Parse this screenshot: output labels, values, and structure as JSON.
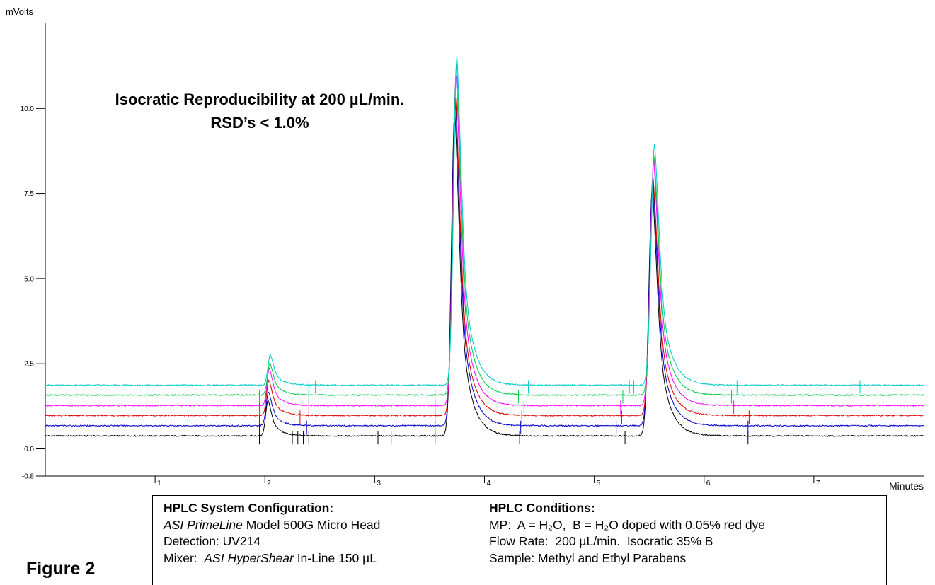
{
  "chart_data": {
    "type": "line",
    "title": "Isocratic Reproducibility at 200 µL/min.",
    "subtitle": "RSD’s < 1.0%",
    "xlabel": "Minutes",
    "ylabel": "mVolts",
    "xlim": [
      0,
      8
    ],
    "ylim": [
      -0.8,
      12.5
    ],
    "x_ticks": [
      1,
      2,
      3,
      4,
      5,
      6,
      7
    ],
    "y_ticks": [
      {
        "value": 10.0,
        "label": "10.0"
      },
      {
        "value": 7.5,
        "label": "7.5"
      },
      {
        "value": 5.0,
        "label": "5.0"
      },
      {
        "value": 2.5,
        "label": "2.5"
      },
      {
        "value": 0.0,
        "label": "0.0"
      },
      {
        "value": -0.8,
        "label": "-0.8"
      }
    ],
    "grid": false,
    "legend": "none",
    "peaks": [
      {
        "retention_min": 2.04
      },
      {
        "retention_min": 3.74
      },
      {
        "retention_min": 5.54
      }
    ],
    "series": [
      {
        "color": "#000000",
        "baseline": 0.38,
        "peak_heights": [
          1.05,
          9.6,
          7.3
        ],
        "markers": [
          1.95,
          2.25,
          2.3,
          2.35,
          2.4,
          3.03,
          3.15,
          3.55,
          4.32,
          5.28,
          6.4
        ]
      },
      {
        "color": "#0000cc",
        "baseline": 0.68,
        "peak_heights": [
          1.0,
          9.7,
          7.25
        ],
        "markers": [
          1.95,
          2.38,
          3.55,
          4.33,
          5.2,
          6.4
        ]
      },
      {
        "color": "#dd0000",
        "baseline": 0.98,
        "peak_heights": [
          1.05,
          9.35,
          6.95
        ],
        "markers": [
          1.95,
          2.32,
          3.55,
          4.34,
          5.25,
          6.41
        ]
      },
      {
        "color": "#ff00ff",
        "baseline": 1.27,
        "peak_heights": [
          1.1,
          9.75,
          7.25
        ],
        "markers": [
          1.95,
          2.4,
          3.55,
          4.36,
          5.24,
          6.27
        ]
      },
      {
        "color": "#00cc44",
        "baseline": 1.58,
        "peak_heights": [
          0.95,
          9.75,
          7.05
        ],
        "markers": [
          1.95,
          2.4,
          3.55,
          4.31,
          5.26,
          6.25
        ]
      },
      {
        "color": "#00cccc",
        "baseline": 1.87,
        "peak_heights": [
          0.9,
          9.7,
          7.1
        ],
        "markers": [
          2.4,
          2.46,
          4.36,
          4.4,
          5.32,
          5.36,
          6.3,
          7.34,
          7.42
        ]
      }
    ]
  },
  "info": {
    "config_heading": "HPLC System Configuration:",
    "config_line1_italic": "ASI PrimeLine",
    "config_line1_rest": " Model 500G Micro Head",
    "config_line2": "Detection: UV214",
    "config_line3_prefix": "Mixer:  ",
    "config_line3_italic": "ASI HyperShear",
    "config_line3_rest": " In-Line 150 µL",
    "conditions_heading": "HPLC Conditions:",
    "conditions_line1": "MP:  A = H₂O,  B = H₂O doped with 0.05% red dye",
    "conditions_line2": "Flow Rate:  200 µL/min.  Isocratic 35% B",
    "conditions_line3": "Sample: Methyl and Ethyl Parabens"
  },
  "figure_label": "Figure 2"
}
